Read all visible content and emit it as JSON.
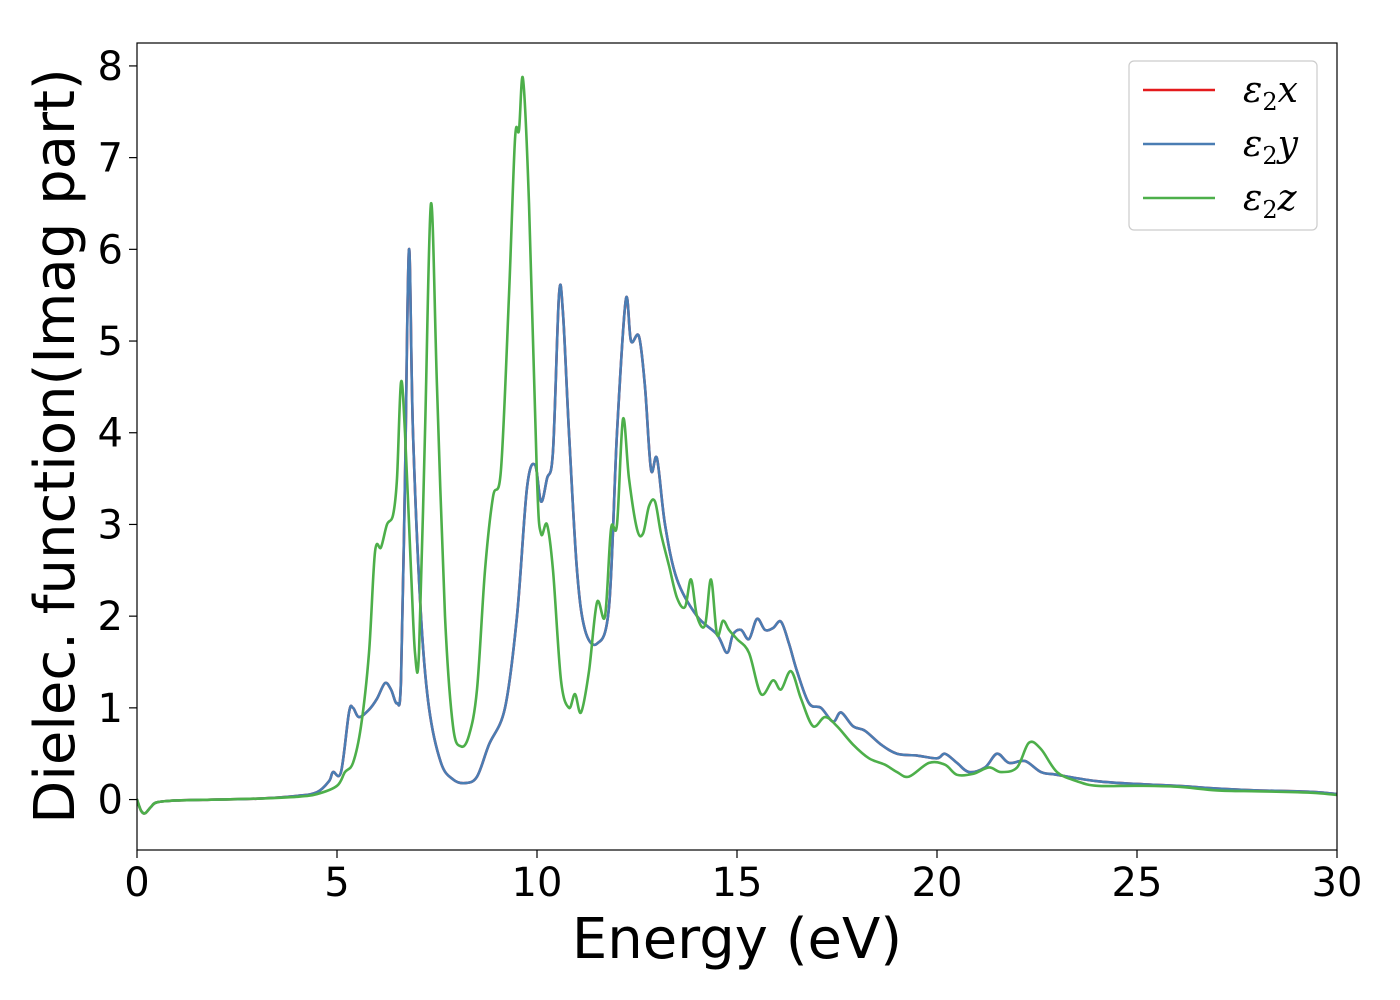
{
  "chart_data": {
    "type": "line",
    "xlabel": "Energy (eV)",
    "ylabel": "Dielec. function(Imag part)",
    "xlim": [
      0,
      30
    ],
    "ylim": [
      -0.55,
      8.25
    ],
    "xticks": [
      0,
      5,
      10,
      15,
      20,
      25,
      30
    ],
    "yticks": [
      0,
      1,
      2,
      3,
      4,
      5,
      6,
      7,
      8
    ],
    "grid": false,
    "legend_position": "top-right",
    "series": [
      {
        "name": "ε2x",
        "legend": {
          "base": "ε",
          "sub": "2",
          "axis": "x"
        },
        "color": "#e41a1c",
        "points": [
          [
            0,
            0
          ],
          [
            0.1,
            -0.12
          ],
          [
            0.2,
            -0.15
          ],
          [
            0.35,
            -0.08
          ],
          [
            0.5,
            -0.03
          ],
          [
            1,
            -0.01
          ],
          [
            2,
            0
          ],
          [
            3,
            0.01
          ],
          [
            4,
            0.04
          ],
          [
            4.5,
            0.08
          ],
          [
            4.8,
            0.2
          ],
          [
            4.9,
            0.3
          ],
          [
            5.1,
            0.3
          ],
          [
            5.3,
            0.95
          ],
          [
            5.4,
            1.0
          ],
          [
            5.55,
            0.9
          ],
          [
            5.8,
            0.98
          ],
          [
            6.0,
            1.1
          ],
          [
            6.2,
            1.27
          ],
          [
            6.35,
            1.2
          ],
          [
            6.5,
            1.05
          ],
          [
            6.6,
            1.3
          ],
          [
            6.7,
            3.5
          ],
          [
            6.8,
            6.0
          ],
          [
            6.9,
            4.0
          ],
          [
            7.1,
            2.0
          ],
          [
            7.3,
            1.0
          ],
          [
            7.6,
            0.4
          ],
          [
            7.9,
            0.22
          ],
          [
            8.2,
            0.18
          ],
          [
            8.5,
            0.25
          ],
          [
            8.8,
            0.6
          ],
          [
            9.2,
            1.0
          ],
          [
            9.5,
            2.0
          ],
          [
            9.75,
            3.4
          ],
          [
            9.95,
            3.65
          ],
          [
            10.1,
            3.25
          ],
          [
            10.25,
            3.5
          ],
          [
            10.4,
            3.8
          ],
          [
            10.55,
            5.5
          ],
          [
            10.65,
            5.3
          ],
          [
            10.8,
            4.0
          ],
          [
            11.0,
            2.5
          ],
          [
            11.2,
            1.85
          ],
          [
            11.5,
            1.7
          ],
          [
            11.8,
            2.1
          ],
          [
            12.0,
            4.0
          ],
          [
            12.22,
            5.45
          ],
          [
            12.35,
            5.0
          ],
          [
            12.55,
            5.05
          ],
          [
            12.7,
            4.5
          ],
          [
            12.85,
            3.6
          ],
          [
            13.0,
            3.72
          ],
          [
            13.2,
            3.0
          ],
          [
            13.5,
            2.4
          ],
          [
            14.0,
            2.0
          ],
          [
            14.5,
            1.8
          ],
          [
            14.75,
            1.6
          ],
          [
            14.9,
            1.8
          ],
          [
            15.1,
            1.85
          ],
          [
            15.3,
            1.75
          ],
          [
            15.5,
            1.97
          ],
          [
            15.7,
            1.85
          ],
          [
            15.9,
            1.87
          ],
          [
            16.1,
            1.94
          ],
          [
            16.3,
            1.7
          ],
          [
            16.5,
            1.4
          ],
          [
            16.8,
            1.05
          ],
          [
            17.1,
            1.0
          ],
          [
            17.4,
            0.85
          ],
          [
            17.6,
            0.95
          ],
          [
            17.9,
            0.8
          ],
          [
            18.2,
            0.75
          ],
          [
            18.6,
            0.6
          ],
          [
            19.0,
            0.5
          ],
          [
            19.5,
            0.48
          ],
          [
            20.0,
            0.45
          ],
          [
            20.2,
            0.5
          ],
          [
            20.5,
            0.4
          ],
          [
            20.8,
            0.3
          ],
          [
            21.2,
            0.35
          ],
          [
            21.5,
            0.5
          ],
          [
            21.8,
            0.4
          ],
          [
            22.2,
            0.42
          ],
          [
            22.6,
            0.3
          ],
          [
            23.0,
            0.27
          ],
          [
            24.0,
            0.2
          ],
          [
            25.0,
            0.17
          ],
          [
            26.0,
            0.15
          ],
          [
            27.0,
            0.12
          ],
          [
            28.0,
            0.1
          ],
          [
            29.0,
            0.09
          ],
          [
            29.5,
            0.08
          ],
          [
            30.0,
            0.06
          ]
        ]
      },
      {
        "name": "ε2y",
        "legend": {
          "base": "ε",
          "sub": "2",
          "axis": "y"
        },
        "color": "#4a7db3",
        "points": [
          [
            0,
            0
          ],
          [
            0.1,
            -0.12
          ],
          [
            0.2,
            -0.15
          ],
          [
            0.35,
            -0.08
          ],
          [
            0.5,
            -0.03
          ],
          [
            1,
            -0.01
          ],
          [
            2,
            0
          ],
          [
            3,
            0.01
          ],
          [
            4,
            0.04
          ],
          [
            4.5,
            0.08
          ],
          [
            4.8,
            0.2
          ],
          [
            4.9,
            0.3
          ],
          [
            5.1,
            0.3
          ],
          [
            5.3,
            0.95
          ],
          [
            5.4,
            1.0
          ],
          [
            5.55,
            0.9
          ],
          [
            5.8,
            0.98
          ],
          [
            6.0,
            1.1
          ],
          [
            6.2,
            1.27
          ],
          [
            6.35,
            1.2
          ],
          [
            6.5,
            1.05
          ],
          [
            6.6,
            1.3
          ],
          [
            6.7,
            3.5
          ],
          [
            6.8,
            6.0
          ],
          [
            6.9,
            4.0
          ],
          [
            7.1,
            2.0
          ],
          [
            7.3,
            1.0
          ],
          [
            7.6,
            0.4
          ],
          [
            7.9,
            0.22
          ],
          [
            8.2,
            0.18
          ],
          [
            8.5,
            0.25
          ],
          [
            8.8,
            0.6
          ],
          [
            9.2,
            1.0
          ],
          [
            9.5,
            2.0
          ],
          [
            9.75,
            3.4
          ],
          [
            9.95,
            3.65
          ],
          [
            10.1,
            3.25
          ],
          [
            10.25,
            3.5
          ],
          [
            10.4,
            3.8
          ],
          [
            10.55,
            5.5
          ],
          [
            10.65,
            5.3
          ],
          [
            10.8,
            4.0
          ],
          [
            11.0,
            2.5
          ],
          [
            11.2,
            1.85
          ],
          [
            11.5,
            1.7
          ],
          [
            11.8,
            2.1
          ],
          [
            12.0,
            4.0
          ],
          [
            12.22,
            5.45
          ],
          [
            12.35,
            5.0
          ],
          [
            12.55,
            5.05
          ],
          [
            12.7,
            4.5
          ],
          [
            12.85,
            3.6
          ],
          [
            13.0,
            3.72
          ],
          [
            13.2,
            3.0
          ],
          [
            13.5,
            2.4
          ],
          [
            14.0,
            2.0
          ],
          [
            14.5,
            1.8
          ],
          [
            14.75,
            1.6
          ],
          [
            14.9,
            1.8
          ],
          [
            15.1,
            1.85
          ],
          [
            15.3,
            1.75
          ],
          [
            15.5,
            1.97
          ],
          [
            15.7,
            1.85
          ],
          [
            15.9,
            1.87
          ],
          [
            16.1,
            1.94
          ],
          [
            16.3,
            1.7
          ],
          [
            16.5,
            1.4
          ],
          [
            16.8,
            1.05
          ],
          [
            17.1,
            1.0
          ],
          [
            17.4,
            0.85
          ],
          [
            17.6,
            0.95
          ],
          [
            17.9,
            0.8
          ],
          [
            18.2,
            0.75
          ],
          [
            18.6,
            0.6
          ],
          [
            19.0,
            0.5
          ],
          [
            19.5,
            0.48
          ],
          [
            20.0,
            0.45
          ],
          [
            20.2,
            0.5
          ],
          [
            20.5,
            0.4
          ],
          [
            20.8,
            0.3
          ],
          [
            21.2,
            0.35
          ],
          [
            21.5,
            0.5
          ],
          [
            21.8,
            0.4
          ],
          [
            22.2,
            0.42
          ],
          [
            22.6,
            0.3
          ],
          [
            23.0,
            0.27
          ],
          [
            24.0,
            0.2
          ],
          [
            25.0,
            0.17
          ],
          [
            26.0,
            0.15
          ],
          [
            27.0,
            0.12
          ],
          [
            28.0,
            0.1
          ],
          [
            29.0,
            0.09
          ],
          [
            29.5,
            0.08
          ],
          [
            30.0,
            0.06
          ]
        ]
      },
      {
        "name": "ε2z",
        "legend": {
          "base": "ε",
          "sub": "2",
          "axis": "z"
        },
        "color": "#4daf4a",
        "points": [
          [
            0,
            0
          ],
          [
            0.1,
            -0.12
          ],
          [
            0.2,
            -0.15
          ],
          [
            0.35,
            -0.08
          ],
          [
            0.5,
            -0.03
          ],
          [
            1,
            -0.01
          ],
          [
            2,
            0
          ],
          [
            3,
            0.01
          ],
          [
            4,
            0.03
          ],
          [
            4.5,
            0.06
          ],
          [
            5.0,
            0.15
          ],
          [
            5.2,
            0.3
          ],
          [
            5.4,
            0.4
          ],
          [
            5.6,
            0.8
          ],
          [
            5.8,
            1.6
          ],
          [
            5.95,
            2.7
          ],
          [
            6.1,
            2.75
          ],
          [
            6.25,
            3.0
          ],
          [
            6.4,
            3.1
          ],
          [
            6.5,
            3.5
          ],
          [
            6.6,
            4.55
          ],
          [
            6.7,
            4.0
          ],
          [
            6.85,
            2.5
          ],
          [
            6.95,
            1.6
          ],
          [
            7.05,
            1.6
          ],
          [
            7.2,
            4.0
          ],
          [
            7.35,
            6.5
          ],
          [
            7.5,
            4.5
          ],
          [
            7.7,
            2.0
          ],
          [
            7.9,
            0.8
          ],
          [
            8.1,
            0.58
          ],
          [
            8.3,
            0.7
          ],
          [
            8.5,
            1.2
          ],
          [
            8.7,
            2.5
          ],
          [
            8.9,
            3.3
          ],
          [
            9.1,
            3.6
          ],
          [
            9.3,
            5.5
          ],
          [
            9.45,
            7.2
          ],
          [
            9.55,
            7.3
          ],
          [
            9.65,
            7.86
          ],
          [
            9.8,
            6.5
          ],
          [
            10.0,
            3.5
          ],
          [
            10.1,
            2.9
          ],
          [
            10.25,
            3.0
          ],
          [
            10.4,
            2.5
          ],
          [
            10.6,
            1.3
          ],
          [
            10.8,
            1.0
          ],
          [
            10.95,
            1.15
          ],
          [
            11.1,
            0.95
          ],
          [
            11.3,
            1.4
          ],
          [
            11.5,
            2.15
          ],
          [
            11.7,
            2.0
          ],
          [
            11.85,
            2.95
          ],
          [
            12.0,
            3.0
          ],
          [
            12.15,
            4.15
          ],
          [
            12.3,
            3.5
          ],
          [
            12.5,
            2.95
          ],
          [
            12.65,
            2.9
          ],
          [
            12.8,
            3.2
          ],
          [
            12.95,
            3.25
          ],
          [
            13.1,
            2.9
          ],
          [
            13.3,
            2.55
          ],
          [
            13.5,
            2.2
          ],
          [
            13.7,
            2.1
          ],
          [
            13.85,
            2.4
          ],
          [
            14.0,
            2.0
          ],
          [
            14.2,
            1.9
          ],
          [
            14.35,
            2.4
          ],
          [
            14.5,
            1.8
          ],
          [
            14.65,
            1.95
          ],
          [
            14.8,
            1.85
          ],
          [
            15.0,
            1.75
          ],
          [
            15.3,
            1.6
          ],
          [
            15.6,
            1.15
          ],
          [
            15.9,
            1.3
          ],
          [
            16.1,
            1.2
          ],
          [
            16.35,
            1.4
          ],
          [
            16.6,
            1.1
          ],
          [
            16.9,
            0.8
          ],
          [
            17.2,
            0.9
          ],
          [
            17.5,
            0.8
          ],
          [
            17.9,
            0.6
          ],
          [
            18.3,
            0.45
          ],
          [
            18.7,
            0.38
          ],
          [
            19.0,
            0.3
          ],
          [
            19.3,
            0.25
          ],
          [
            19.8,
            0.4
          ],
          [
            20.2,
            0.38
          ],
          [
            20.5,
            0.27
          ],
          [
            20.9,
            0.28
          ],
          [
            21.3,
            0.35
          ],
          [
            21.6,
            0.3
          ],
          [
            22.0,
            0.35
          ],
          [
            22.3,
            0.62
          ],
          [
            22.6,
            0.55
          ],
          [
            23.0,
            0.3
          ],
          [
            23.5,
            0.2
          ],
          [
            24.0,
            0.15
          ],
          [
            25.0,
            0.15
          ],
          [
            26.0,
            0.14
          ],
          [
            27.0,
            0.1
          ],
          [
            28.0,
            0.09
          ],
          [
            29.0,
            0.08
          ],
          [
            29.5,
            0.07
          ],
          [
            30.0,
            0.05
          ]
        ]
      }
    ]
  }
}
